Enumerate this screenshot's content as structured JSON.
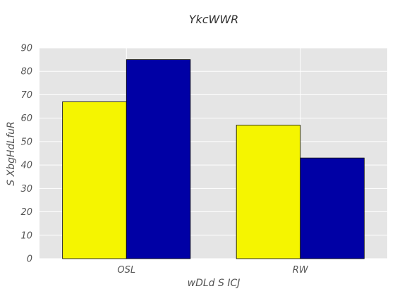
{
  "chart_data": {
    "type": "bar",
    "title": "YkcWWR",
    "xlabel": "wDLd  S ICJ",
    "ylabel": "S  XbgHdLfuR",
    "categories": [
      "OSL",
      "RW"
    ],
    "series": [
      {
        "values": [
          67,
          57
        ],
        "color": "#f5f500"
      },
      {
        "values": [
          85,
          43
        ],
        "color": "#0000a5"
      }
    ],
    "ylim": [
      0,
      90
    ],
    "yticks": [
      0,
      10,
      20,
      30,
      40,
      50,
      60,
      70,
      80,
      90
    ],
    "grid": true,
    "background": "#e5e5e5",
    "gridColor": "#ffffff"
  }
}
